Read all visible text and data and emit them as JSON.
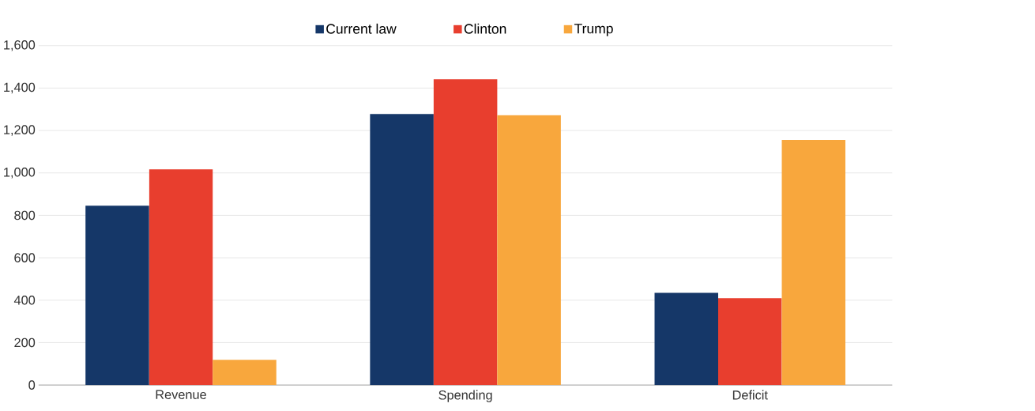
{
  "chart_data": {
    "type": "bar",
    "categories": [
      "Revenue",
      "Spending",
      "Deficit"
    ],
    "series": [
      {
        "name": "Current law",
        "color": "#153768",
        "values": [
          845,
          1278,
          435
        ]
      },
      {
        "name": "Clinton",
        "color": "#e83e2e",
        "values": [
          1017,
          1442,
          409
        ]
      },
      {
        "name": "Trump",
        "color": "#f8a73d",
        "values": [
          119,
          1272,
          1156
        ]
      }
    ],
    "ylim": [
      0,
      1600
    ],
    "yticks": [
      {
        "value": 0,
        "label": "0"
      },
      {
        "value": 200,
        "label": "200"
      },
      {
        "value": 400,
        "label": "400"
      },
      {
        "value": 600,
        "label": "600"
      },
      {
        "value": 800,
        "label": "800"
      },
      {
        "value": 1000,
        "label": "1,000"
      },
      {
        "value": 1200,
        "label": "1,200"
      },
      {
        "value": 1400,
        "label": "1,400"
      },
      {
        "value": 1600,
        "label": "1,600"
      }
    ],
    "grid": "y",
    "legend": "top"
  }
}
